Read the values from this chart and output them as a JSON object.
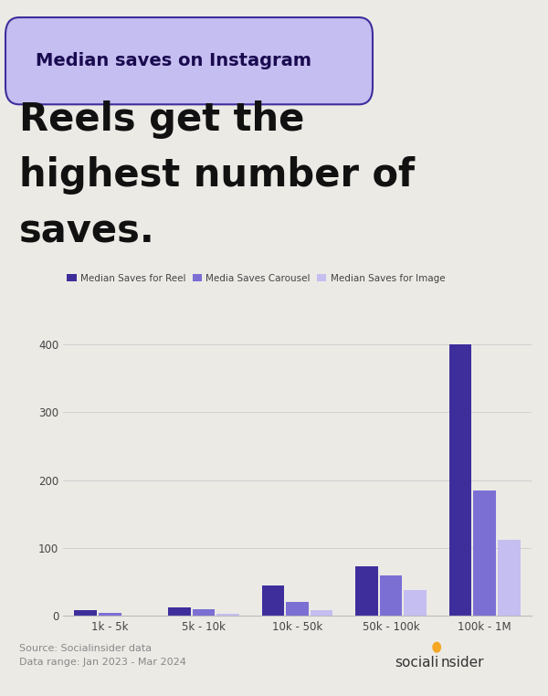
{
  "bg_color": "#eceae5",
  "title_box_color": "#c5bef0",
  "title_box_text": "Median saves on Instagram",
  "headline_line1": "Reels get the",
  "headline_line2": "highest number of",
  "headline_line3": "saves.",
  "categories": [
    "1k - 5k",
    "5k - 10k",
    "10k - 50k",
    "50k - 100k",
    "100k - 1M"
  ],
  "reel_values": [
    8,
    12,
    45,
    73,
    400
  ],
  "carousel_values": [
    4,
    10,
    20,
    60,
    185
  ],
  "image_values": [
    1,
    3,
    8,
    38,
    112
  ],
  "color_reel": "#3d2e9c",
  "color_carousel": "#7b6fd4",
  "color_image": "#c5bef0",
  "legend_labels": [
    "Median Saves for Reel",
    "Media Saves Carousel",
    "Median Saves for Image"
  ],
  "ylim": [
    0,
    430
  ],
  "yticks": [
    0,
    100,
    200,
    300,
    400
  ],
  "source_text": "Source: Socialinsider data\nData range: Jan 2023 - Mar 2024",
  "source_color": "#888888",
  "logo_dot_color": "#f5a623",
  "title_box_border_color": "#3d2e9c"
}
